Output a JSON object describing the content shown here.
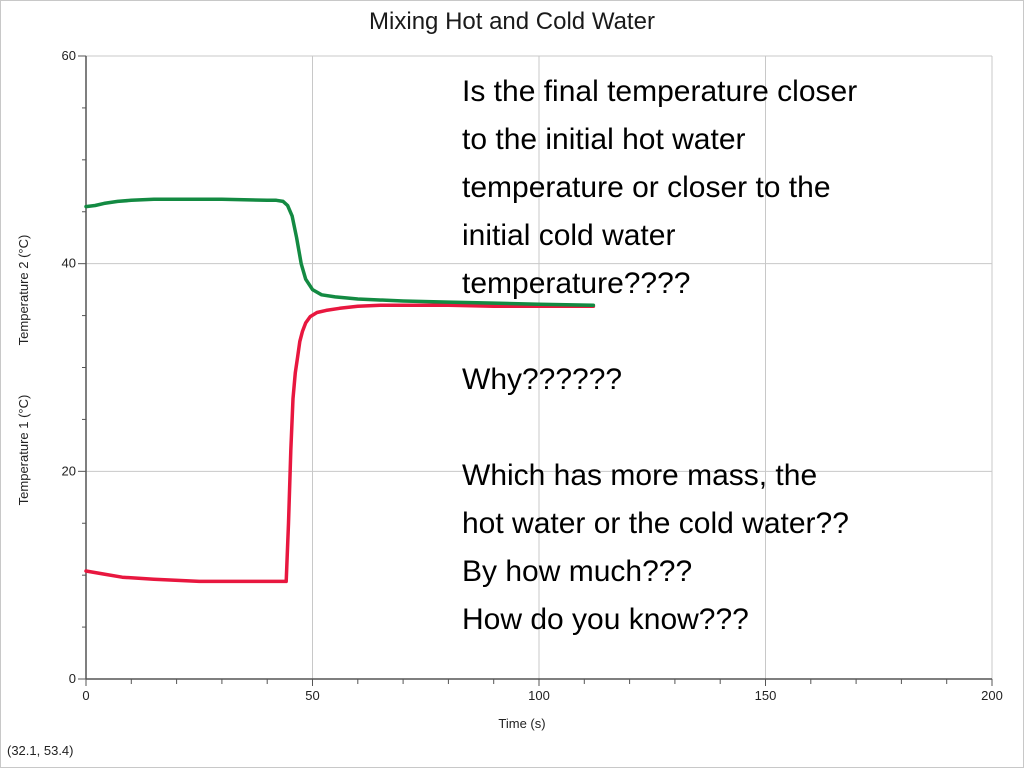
{
  "colors": {
    "temp1": "#e8173f",
    "temp2": "#138a42",
    "grid": "#c8c8c8",
    "axis": "#555555"
  },
  "coordinate_readout": "(32.1, 53.4)",
  "questions": {
    "q1": [
      "Is the final temperature closer",
      "to the initial hot water",
      "temperature or closer to the",
      "initial cold water",
      "temperature????"
    ],
    "q2": [
      "Why??????"
    ],
    "q3": [
      "Which has more mass, the",
      "hot water or the cold water??",
      "By how much???",
      "How do you know???"
    ]
  },
  "chart_data": {
    "type": "line",
    "title": "Mixing Hot and Cold Water",
    "xlabel": "Time (s)",
    "ylabels": [
      {
        "text": "Temperature 1 (°C)",
        "series": "temp1"
      },
      {
        "text": "Temperature 2 (°C)",
        "series": "temp2"
      }
    ],
    "xlim": [
      0,
      200
    ],
    "ylim": [
      0,
      60
    ],
    "xticks": [
      0,
      50,
      100,
      150,
      200
    ],
    "yticks": [
      0,
      20,
      40,
      60
    ],
    "grid": true,
    "series": [
      {
        "id": "temp1",
        "x": [
          0,
          4,
          8,
          15,
          25,
          35,
          43,
          44.2,
          44.7,
          45.2,
          45.7,
          46.2,
          46.7,
          47.2,
          47.8,
          48.5,
          49.5,
          51,
          53,
          56,
          60,
          65,
          70,
          80,
          90,
          100,
          112
        ],
        "y": [
          10.4,
          10.1,
          9.8,
          9.6,
          9.4,
          9.4,
          9.4,
          9.4,
          15,
          22,
          27,
          29.5,
          31,
          32.5,
          33.5,
          34.3,
          34.9,
          35.3,
          35.5,
          35.7,
          35.9,
          36,
          36,
          36,
          35.9,
          35.9,
          35.9
        ]
      },
      {
        "id": "temp2",
        "x": [
          0,
          2,
          4,
          7,
          10,
          15,
          20,
          30,
          40,
          42,
          43.5,
          44.5,
          45.5,
          46.5,
          47.5,
          48.5,
          50,
          52,
          55,
          60,
          70,
          80,
          90,
          100,
          112
        ],
        "y": [
          45.5,
          45.6,
          45.8,
          46,
          46.1,
          46.2,
          46.2,
          46.2,
          46.1,
          46.1,
          46,
          45.6,
          44.6,
          42.5,
          40,
          38.5,
          37.5,
          37,
          36.8,
          36.6,
          36.4,
          36.3,
          36.2,
          36.1,
          36
        ]
      }
    ]
  }
}
